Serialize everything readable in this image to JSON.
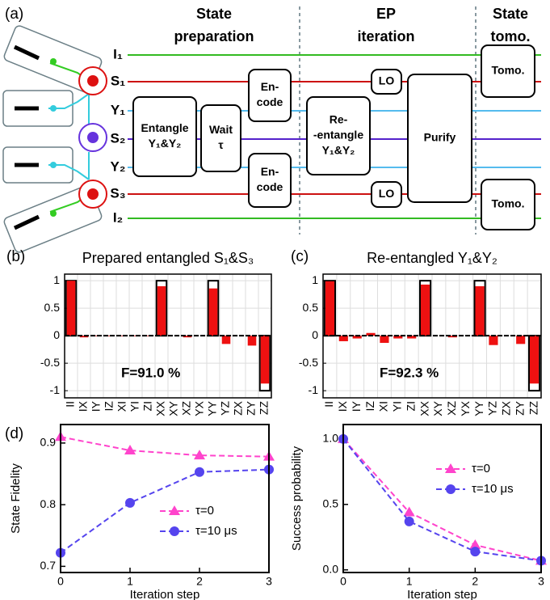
{
  "diagram": {
    "label": "(a)",
    "headers": [
      {
        "lines": [
          "State",
          "preparation"
        ]
      },
      {
        "lines": [
          "EP",
          "iteration"
        ]
      },
      {
        "lines": [
          "State",
          "tomo."
        ]
      }
    ],
    "channels": [
      {
        "label": "I₁",
        "color": "#33bb22"
      },
      {
        "label": "S₁",
        "color": "#cc1111"
      },
      {
        "label": "Y₁",
        "color": "#55bbee"
      },
      {
        "label": "S₂",
        "color": "#5522cc"
      },
      {
        "label": "Y₂",
        "color": "#55bbee"
      },
      {
        "label": "S₃",
        "color": "#cc1111"
      },
      {
        "label": "I₂",
        "color": "#33bb22"
      }
    ],
    "boxes": [
      {
        "lines": [
          "Entangle",
          "Y₁&Y₂"
        ]
      },
      {
        "lines": [
          "Wait",
          "τ"
        ]
      },
      {
        "lines": [
          "En-",
          "code"
        ]
      },
      {
        "lines": [
          "En-",
          "code"
        ]
      },
      {
        "lines": [
          "Re-",
          "-entangle",
          "Y₁&Y₂"
        ]
      },
      {
        "lines": [
          "LO"
        ]
      },
      {
        "lines": [
          "LO"
        ]
      },
      {
        "lines": [
          "Purify"
        ]
      },
      {
        "lines": [
          "Tomo."
        ]
      },
      {
        "lines": [
          "Tomo."
        ]
      }
    ]
  },
  "chart_data": [
    {
      "type": "bar",
      "label": "(b)",
      "title": "Prepared entangled S₁&S₃",
      "annotation": "F=91.0 %",
      "categories": [
        "II",
        "IX",
        "IY",
        "IZ",
        "XI",
        "YI",
        "ZI",
        "XX",
        "XY",
        "XZ",
        "YX",
        "YY",
        "YZ",
        "ZX",
        "ZY",
        "ZZ"
      ],
      "series": [
        {
          "color": "#000000",
          "outline": true,
          "values": [
            1,
            0,
            0,
            0,
            0,
            0,
            0,
            1,
            0,
            0,
            0,
            1,
            0,
            0,
            0,
            -1
          ]
        },
        {
          "color": "#ee1111",
          "values": [
            1,
            -0.03,
            -0.01,
            -0.01,
            -0.01,
            -0.01,
            -0.01,
            0.9,
            0,
            -0.03,
            0,
            0.86,
            -0.15,
            0,
            -0.18,
            -0.87
          ]
        }
      ],
      "ylim": [
        -1.13,
        1.12
      ],
      "yticks": [
        -1,
        -0.5,
        0,
        0.5,
        1
      ],
      "grid": true
    },
    {
      "type": "bar",
      "label": "(c)",
      "title": "Re-entangled Y₁&Y₂",
      "annotation": "F=92.3 %",
      "categories": [
        "II",
        "IX",
        "IY",
        "IZ",
        "XI",
        "YI",
        "ZI",
        "XX",
        "XY",
        "XZ",
        "YX",
        "YY",
        "YZ",
        "ZX",
        "ZY",
        "ZZ"
      ],
      "series": [
        {
          "color": "#000000",
          "outline": true,
          "values": [
            1,
            0,
            0,
            0,
            0,
            0,
            0,
            1,
            0,
            0,
            0,
            1,
            0,
            0,
            0,
            -1
          ]
        },
        {
          "color": "#ee1111",
          "values": [
            0.99,
            -0.1,
            -0.05,
            0.05,
            -0.13,
            -0.05,
            -0.05,
            0.93,
            0,
            -0.03,
            0,
            0.9,
            -0.17,
            0,
            -0.15,
            -0.87
          ]
        }
      ],
      "ylim": [
        -1.13,
        1.12
      ],
      "yticks": [
        -1,
        -0.5,
        0,
        0.5,
        1
      ],
      "grid": true
    },
    {
      "type": "line",
      "label": "(d)",
      "xlabel": "Iteration step",
      "ylabel": "State Fidelity",
      "x": [
        0,
        1,
        2,
        3
      ],
      "xlim": [
        0,
        3
      ],
      "xticks": [
        0,
        1,
        2,
        3
      ],
      "ylim": [
        0.69,
        0.93
      ],
      "yticks": [
        0.7,
        0.8,
        0.9
      ],
      "legend": "lower right",
      "series": [
        {
          "name": "τ=0",
          "color": "#ff44cc",
          "marker": "triangle",
          "values": [
            0.91,
            0.888,
            0.88,
            0.878
          ]
        },
        {
          "name": "τ=10 μs",
          "color": "#5544ee",
          "marker": "circle",
          "values": [
            0.722,
            0.803,
            0.853,
            0.857
          ]
        }
      ]
    },
    {
      "type": "line",
      "xlabel": "Iteration step",
      "ylabel": "Success probability",
      "x": [
        0,
        1,
        2,
        3
      ],
      "xlim": [
        0,
        3
      ],
      "xticks": [
        0,
        1,
        2,
        3
      ],
      "ylim": [
        -0.02,
        1.11
      ],
      "yticks": [
        {
          "value": 0,
          "label": "0.0"
        },
        {
          "value": 0.5,
          "label": "0.5"
        },
        {
          "value": 1,
          "label": "1.0"
        }
      ],
      "legend": "upper right",
      "series": [
        {
          "name": "τ=0",
          "color": "#ff44cc",
          "marker": "triangle",
          "values": [
            1,
            0.44,
            0.19,
            0.07
          ]
        },
        {
          "name": "τ=10 μs",
          "color": "#5544ee",
          "marker": "circle",
          "values": [
            1,
            0.37,
            0.14,
            0.07
          ]
        }
      ]
    }
  ]
}
